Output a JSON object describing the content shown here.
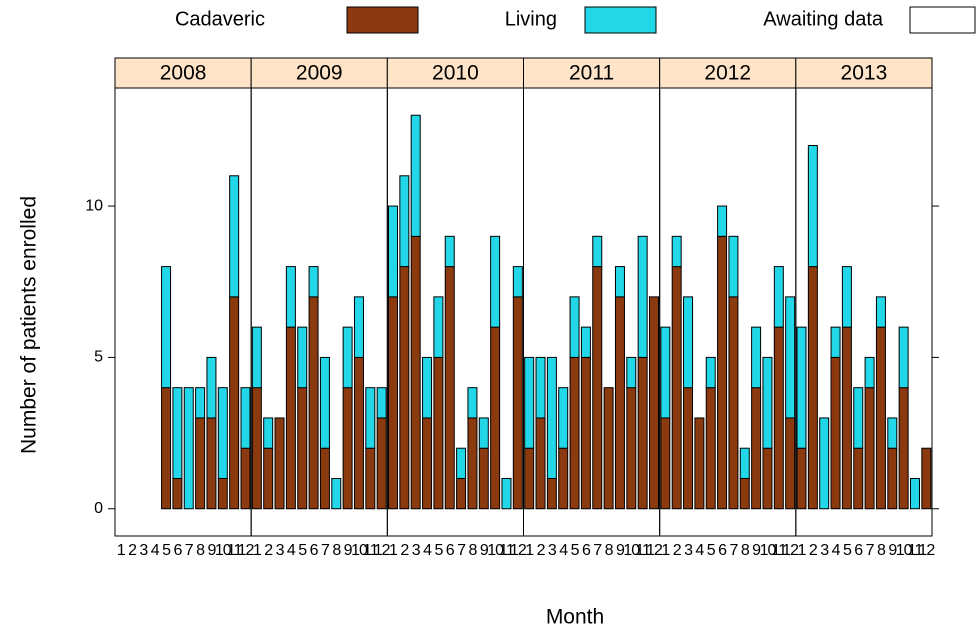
{
  "chart_data": {
    "type": "bar",
    "stacked": true,
    "xlabel": "Month",
    "ylabel": "Number of patients enrolled",
    "panels": [
      "2008",
      "2009",
      "2010",
      "2011",
      "2012",
      "2013"
    ],
    "categories": [
      "1",
      "2",
      "3",
      "4",
      "5",
      "6",
      "7",
      "8",
      "9",
      "10",
      "11",
      "12"
    ],
    "ylim": [
      -0.9,
      13.9
    ],
    "yticks": [
      0,
      5,
      10
    ],
    "series": [
      {
        "name": "Cadaveric",
        "color": "#8b3a10",
        "values": [
          [
            null,
            null,
            null,
            null,
            4,
            1,
            0,
            3,
            3,
            1,
            7,
            2
          ],
          [
            4,
            2,
            3,
            6,
            4,
            7,
            2,
            0,
            4,
            5,
            2,
            3
          ],
          [
            7,
            8,
            9,
            3,
            5,
            8,
            1,
            3,
            2,
            6,
            0,
            7
          ],
          [
            2,
            3,
            1,
            2,
            5,
            5,
            8,
            4,
            7,
            4,
            5,
            7
          ],
          [
            3,
            8,
            4,
            3,
            4,
            9,
            7,
            1,
            4,
            2,
            6,
            3
          ],
          [
            2,
            8,
            0,
            5,
            6,
            2,
            4,
            6,
            2,
            4,
            0,
            2
          ]
        ]
      },
      {
        "name": "Living",
        "color": "#22d8e8",
        "values": [
          [
            null,
            null,
            null,
            null,
            4,
            3,
            4,
            1,
            2,
            3,
            4,
            2
          ],
          [
            2,
            1,
            0,
            2,
            2,
            1,
            3,
            1,
            2,
            2,
            2,
            1
          ],
          [
            3,
            3,
            4,
            2,
            2,
            1,
            1,
            1,
            1,
            3,
            1,
            1
          ],
          [
            3,
            2,
            4,
            2,
            2,
            1,
            1,
            0,
            1,
            1,
            4,
            0
          ],
          [
            3,
            1,
            3,
            0,
            1,
            1,
            2,
            1,
            2,
            3,
            2,
            4
          ],
          [
            4,
            4,
            3,
            1,
            2,
            2,
            1,
            1,
            1,
            2,
            1,
            0
          ]
        ]
      },
      {
        "name": "Awaiting data",
        "color": "#ffffff",
        "values": [
          [
            null,
            null,
            null,
            null,
            0,
            0,
            0,
            0,
            0,
            0,
            0,
            0
          ],
          [
            0,
            0,
            0,
            0,
            0,
            0,
            0,
            0,
            0,
            0,
            0,
            0
          ],
          [
            0,
            0,
            0,
            0,
            0,
            0,
            0,
            0,
            0,
            0,
            0,
            0
          ],
          [
            0,
            0,
            0,
            0,
            0,
            0,
            0,
            0,
            0,
            0,
            0,
            0
          ],
          [
            0,
            0,
            0,
            0,
            0,
            0,
            0,
            0,
            0,
            0,
            0,
            0
          ],
          [
            0,
            0,
            0,
            0,
            0,
            0,
            0,
            0,
            0,
            0,
            0,
            0
          ]
        ]
      }
    ]
  }
}
